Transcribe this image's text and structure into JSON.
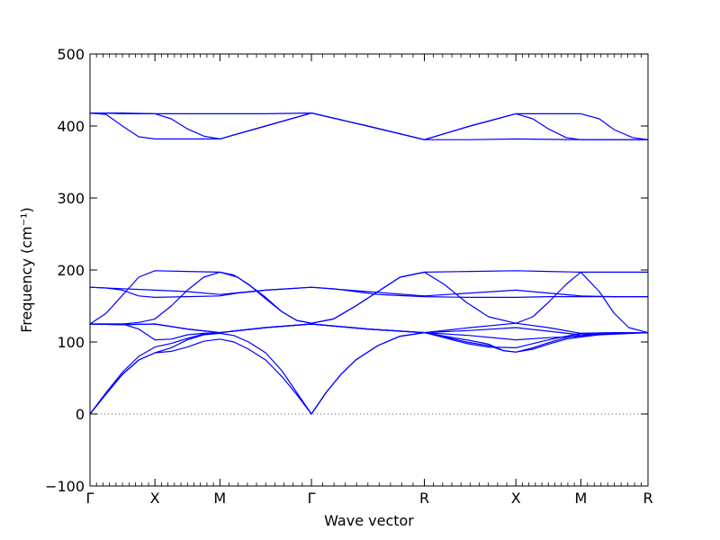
{
  "chart_data": {
    "type": "line",
    "xlabel": "Wave vector",
    "ylabel": "Frequency (cm⁻¹)",
    "ylim": [
      -100,
      500
    ],
    "yticks": [
      -100,
      0,
      100,
      200,
      300,
      400,
      500
    ],
    "xlim": [
      0,
      7.56
    ],
    "x_ticks": [
      {
        "label": "Γ",
        "value": 0
      },
      {
        "label": "X",
        "value": 0.88
      },
      {
        "label": "M",
        "value": 1.76
      },
      {
        "label": "Γ",
        "value": 3.0
      },
      {
        "label": "R",
        "value": 4.53
      },
      {
        "label": "X",
        "value": 5.77
      },
      {
        "label": "M",
        "value": 6.65
      },
      {
        "label": "R",
        "value": 7.56
      }
    ],
    "zero_line": true,
    "line_color": "#0000ff",
    "series": [
      {
        "points": [
          [
            0,
            418
          ],
          [
            0.22,
            418
          ],
          [
            0.44,
            417
          ],
          [
            0.66,
            417
          ],
          [
            0.88,
            417
          ],
          [
            1.32,
            417
          ],
          [
            1.76,
            417
          ],
          [
            2.38,
            417
          ],
          [
            3.0,
            418
          ],
          [
            3.76,
            400
          ],
          [
            4.53,
            381
          ],
          [
            5.15,
            400
          ],
          [
            5.77,
            417
          ],
          [
            6.21,
            417
          ],
          [
            6.65,
            417
          ],
          [
            6.9,
            410
          ],
          [
            7.1,
            395
          ],
          [
            7.35,
            384
          ],
          [
            7.56,
            381
          ]
        ]
      },
      {
        "points": [
          [
            0,
            418
          ],
          [
            0.22,
            416
          ],
          [
            0.44,
            400
          ],
          [
            0.66,
            385
          ],
          [
            0.88,
            382
          ],
          [
            1.1,
            382
          ],
          [
            1.32,
            382
          ],
          [
            1.54,
            382
          ],
          [
            1.76,
            382
          ],
          [
            2.38,
            400
          ],
          [
            3.0,
            418
          ],
          [
            3.76,
            400
          ],
          [
            4.53,
            381
          ],
          [
            5.15,
            400
          ],
          [
            5.77,
            417
          ],
          [
            6.0,
            410
          ],
          [
            6.21,
            396
          ],
          [
            6.45,
            384
          ],
          [
            6.65,
            381
          ],
          [
            7.1,
            381
          ],
          [
            7.56,
            381
          ]
        ]
      },
      {
        "points": [
          [
            0,
            418
          ],
          [
            0.44,
            418
          ],
          [
            0.88,
            417
          ],
          [
            1.1,
            410
          ],
          [
            1.32,
            396
          ],
          [
            1.54,
            386
          ],
          [
            1.76,
            382
          ],
          [
            2.38,
            400
          ],
          [
            3.0,
            418
          ],
          [
            3.76,
            400
          ],
          [
            4.53,
            381
          ],
          [
            5.15,
            381
          ],
          [
            5.77,
            382
          ],
          [
            6.65,
            381
          ],
          [
            7.56,
            381
          ]
        ]
      },
      {
        "points": [
          [
            0,
            176
          ],
          [
            0.44,
            174
          ],
          [
            0.88,
            172
          ],
          [
            1.32,
            170
          ],
          [
            1.76,
            166
          ],
          [
            2.38,
            172
          ],
          [
            3.0,
            176
          ],
          [
            3.76,
            170
          ],
          [
            4.53,
            164
          ],
          [
            5.15,
            168
          ],
          [
            5.77,
            172
          ],
          [
            6.21,
            168
          ],
          [
            6.65,
            164
          ],
          [
            7.1,
            163
          ],
          [
            7.56,
            163
          ]
        ]
      },
      {
        "points": [
          [
            0,
            176
          ],
          [
            0.22,
            175
          ],
          [
            0.44,
            172
          ],
          [
            0.66,
            164
          ],
          [
            0.88,
            162
          ],
          [
            1.32,
            163
          ],
          [
            1.76,
            164
          ],
          [
            2.0,
            168
          ],
          [
            2.2,
            170
          ],
          [
            2.38,
            172
          ],
          [
            3.0,
            176
          ],
          [
            3.3,
            174
          ],
          [
            3.6,
            170
          ],
          [
            3.9,
            166
          ],
          [
            4.1,
            165
          ],
          [
            4.53,
            163
          ],
          [
            5.15,
            162
          ],
          [
            5.77,
            162
          ],
          [
            6.21,
            163
          ],
          [
            6.65,
            163
          ],
          [
            7.56,
            163
          ]
        ]
      },
      {
        "points": [
          [
            0,
            125
          ],
          [
            0.22,
            140
          ],
          [
            0.44,
            165
          ],
          [
            0.66,
            190
          ],
          [
            0.88,
            199
          ],
          [
            1.32,
            198
          ],
          [
            1.76,
            197
          ],
          [
            2.0,
            190
          ],
          [
            2.2,
            176
          ],
          [
            2.38,
            162
          ],
          [
            2.6,
            142
          ],
          [
            2.8,
            130
          ],
          [
            3.0,
            126
          ],
          [
            3.3,
            132
          ],
          [
            3.6,
            150
          ],
          [
            3.9,
            170
          ],
          [
            4.2,
            190
          ],
          [
            4.53,
            197
          ],
          [
            5.15,
            198
          ],
          [
            5.77,
            199
          ],
          [
            6.21,
            198
          ],
          [
            6.65,
            197
          ],
          [
            7.1,
            197
          ],
          [
            7.56,
            197
          ]
        ]
      },
      {
        "points": [
          [
            0,
            125
          ],
          [
            0.44,
            125
          ],
          [
            0.66,
            127
          ],
          [
            0.88,
            132
          ],
          [
            1.1,
            150
          ],
          [
            1.32,
            172
          ],
          [
            1.54,
            190
          ],
          [
            1.76,
            197
          ],
          [
            1.95,
            193
          ],
          [
            2.15,
            180
          ],
          [
            2.38,
            160
          ],
          [
            2.6,
            142
          ],
          [
            2.8,
            130
          ],
          [
            3.0,
            126
          ],
          [
            3.3,
            132
          ],
          [
            3.6,
            150
          ],
          [
            3.9,
            170
          ],
          [
            4.2,
            190
          ],
          [
            4.53,
            197
          ],
          [
            4.8,
            180
          ],
          [
            5.1,
            155
          ],
          [
            5.4,
            135
          ],
          [
            5.77,
            126
          ],
          [
            6.0,
            135
          ],
          [
            6.21,
            155
          ],
          [
            6.45,
            180
          ],
          [
            6.65,
            197
          ],
          [
            6.9,
            170
          ],
          [
            7.1,
            140
          ],
          [
            7.3,
            120
          ],
          [
            7.56,
            113
          ]
        ]
      },
      {
        "points": [
          [
            0,
            125
          ],
          [
            0.44,
            125
          ],
          [
            0.66,
            118
          ],
          [
            0.88,
            103
          ],
          [
            1.1,
            104
          ],
          [
            1.32,
            110
          ],
          [
            1.54,
            112
          ],
          [
            1.76,
            113
          ],
          [
            2.38,
            120
          ],
          [
            3.0,
            125
          ],
          [
            3.76,
            118
          ],
          [
            4.53,
            113
          ],
          [
            5.15,
            120
          ],
          [
            5.77,
            126
          ],
          [
            6.21,
            120
          ],
          [
            6.65,
            112
          ],
          [
            7.1,
            113
          ],
          [
            7.56,
            113
          ]
        ]
      },
      {
        "points": [
          [
            0,
            125
          ],
          [
            0.44,
            124
          ],
          [
            0.88,
            125
          ],
          [
            1.32,
            118
          ],
          [
            1.76,
            113
          ],
          [
            2.38,
            120
          ],
          [
            3.0,
            125
          ],
          [
            3.76,
            118
          ],
          [
            4.53,
            113
          ],
          [
            5.15,
            109
          ],
          [
            5.77,
            103
          ],
          [
            6.21,
            106
          ],
          [
            6.65,
            108
          ],
          [
            6.9,
            112
          ],
          [
            7.56,
            113
          ]
        ]
      },
      {
        "points": [
          [
            0,
            125
          ],
          [
            0.44,
            124
          ],
          [
            0.88,
            125
          ],
          [
            1.32,
            118
          ],
          [
            1.76,
            113
          ],
          [
            2.38,
            120
          ],
          [
            3.0,
            125
          ],
          [
            3.76,
            118
          ],
          [
            4.53,
            113
          ],
          [
            5.15,
            116
          ],
          [
            5.77,
            120
          ],
          [
            6.21,
            115
          ],
          [
            6.65,
            110
          ],
          [
            7.1,
            112
          ],
          [
            7.56,
            113
          ]
        ]
      },
      {
        "points": [
          [
            0,
            0
          ],
          [
            0.22,
            30
          ],
          [
            0.44,
            58
          ],
          [
            0.66,
            80
          ],
          [
            0.88,
            93
          ],
          [
            1.1,
            98
          ],
          [
            1.32,
            105
          ],
          [
            1.54,
            111
          ],
          [
            1.76,
            113
          ],
          [
            2.38,
            120
          ],
          [
            3.0,
            125
          ],
          [
            3.76,
            118
          ],
          [
            4.53,
            113
          ],
          [
            5.15,
            102
          ],
          [
            5.4,
            97
          ],
          [
            5.6,
            88
          ],
          [
            5.77,
            86
          ],
          [
            6.0,
            90
          ],
          [
            6.21,
            97
          ],
          [
            6.45,
            104
          ],
          [
            6.65,
            107
          ],
          [
            6.9,
            110
          ],
          [
            7.56,
            113
          ]
        ]
      },
      {
        "points": [
          [
            0,
            0
          ],
          [
            0.22,
            28
          ],
          [
            0.44,
            55
          ],
          [
            0.66,
            75
          ],
          [
            0.88,
            85
          ],
          [
            1.1,
            87
          ],
          [
            1.32,
            93
          ],
          [
            1.54,
            101
          ],
          [
            1.76,
            104
          ],
          [
            1.95,
            100
          ],
          [
            2.15,
            90
          ],
          [
            2.38,
            75
          ],
          [
            2.6,
            52
          ],
          [
            2.8,
            27
          ],
          [
            3.0,
            0
          ],
          [
            3.2,
            30
          ],
          [
            3.4,
            55
          ],
          [
            3.6,
            75
          ],
          [
            3.9,
            95
          ],
          [
            4.2,
            108
          ],
          [
            4.53,
            113
          ],
          [
            4.8,
            106
          ],
          [
            5.1,
            98
          ],
          [
            5.4,
            93
          ],
          [
            5.77,
            92
          ],
          [
            6.21,
            103
          ],
          [
            6.65,
            112
          ],
          [
            7.56,
            113
          ]
        ]
      },
      {
        "points": [
          [
            0,
            0
          ],
          [
            0.22,
            28
          ],
          [
            0.44,
            55
          ],
          [
            0.66,
            75
          ],
          [
            0.88,
            85
          ],
          [
            1.1,
            92
          ],
          [
            1.32,
            103
          ],
          [
            1.54,
            110
          ],
          [
            1.76,
            112
          ],
          [
            1.95,
            109
          ],
          [
            2.15,
            100
          ],
          [
            2.38,
            85
          ],
          [
            2.6,
            60
          ],
          [
            2.8,
            30
          ],
          [
            3.0,
            0
          ],
          [
            3.2,
            30
          ],
          [
            3.4,
            55
          ],
          [
            3.6,
            75
          ],
          [
            3.9,
            95
          ],
          [
            4.2,
            108
          ],
          [
            4.53,
            113
          ],
          [
            4.8,
            107
          ],
          [
            5.1,
            100
          ],
          [
            5.4,
            95
          ],
          [
            5.6,
            88
          ],
          [
            5.77,
            86
          ],
          [
            6.0,
            92
          ],
          [
            6.21,
            99
          ],
          [
            6.45,
            106
          ],
          [
            6.65,
            110
          ],
          [
            7.1,
            112
          ],
          [
            7.56,
            113
          ]
        ]
      }
    ]
  }
}
